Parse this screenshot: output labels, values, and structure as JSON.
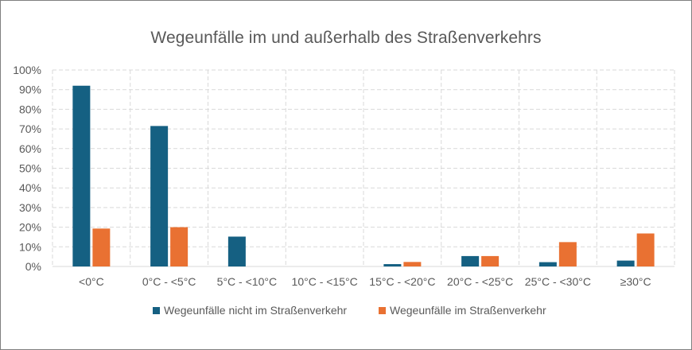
{
  "chart_data": {
    "type": "bar",
    "title": "Wegeunfälle im und außerhalb des Straßenverkehrs",
    "categories": [
      "<0°C",
      "0°C - <5°C",
      "5°C - <10°C",
      "10°C - <15°C",
      "15°C - <20°C",
      "20°C - <25°C",
      "25°C - <30°C",
      "≥30°C"
    ],
    "series": [
      {
        "name": "Wegeunfälle nicht im Straßenverkehr",
        "color": "#156082",
        "values": [
          92,
          71.5,
          15.2,
          0,
          1.2,
          5.3,
          2.2,
          3.0
        ]
      },
      {
        "name": "Wegeunfälle im Straßenverkehr",
        "color": "#E97132",
        "values": [
          19.3,
          20.0,
          0,
          0,
          2.3,
          5.3,
          12.4,
          16.8
        ]
      }
    ],
    "ylim": [
      0,
      100
    ],
    "yticks": [
      "0%",
      "10%",
      "20%",
      "30%",
      "40%",
      "50%",
      "60%",
      "70%",
      "80%",
      "90%",
      "100%"
    ],
    "grid": true,
    "legend_position": "bottom",
    "xlabel": "",
    "ylabel": ""
  }
}
